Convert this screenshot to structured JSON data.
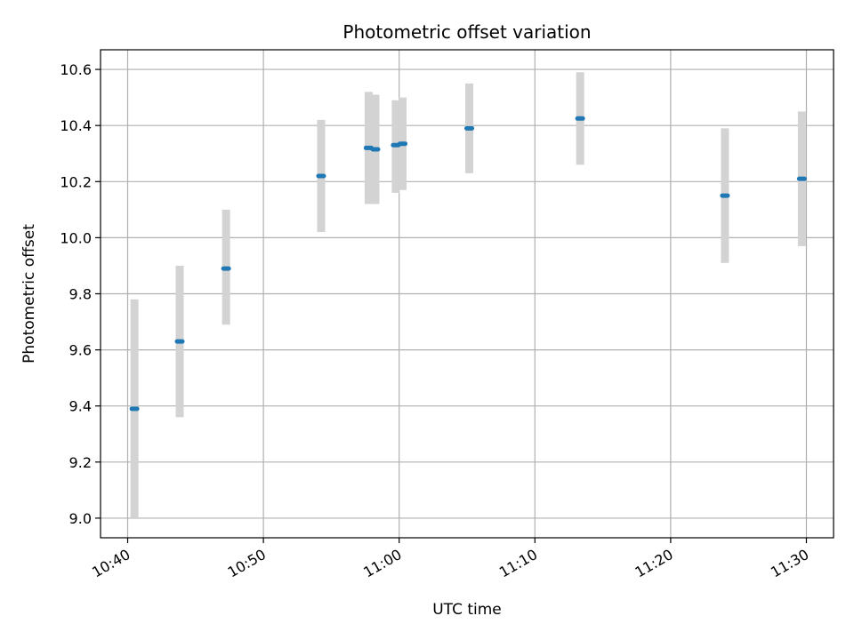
{
  "chart_data": {
    "type": "scatter",
    "title": "Photometric offset variation",
    "xlabel": "UTC time",
    "ylabel": "Photometric offset",
    "grid": true,
    "xlim": [
      "10:38",
      "11:32"
    ],
    "ylim": [
      8.93,
      10.67
    ],
    "x_ticks": [
      "10:40",
      "10:50",
      "11:00",
      "11:10",
      "11:20",
      "11:30"
    ],
    "y_ticks": [
      9.0,
      9.2,
      9.4,
      9.6,
      9.8,
      10.0,
      10.2,
      10.4,
      10.6
    ],
    "colors": {
      "point": "#1f77b4",
      "errorbar": "#d3d3d3",
      "grid": "#b0b0b0"
    },
    "points": [
      {
        "x": "10:40:30",
        "y": 9.39,
        "low": 9.0,
        "high": 9.78
      },
      {
        "x": "10:43:50",
        "y": 9.63,
        "low": 9.36,
        "high": 9.9
      },
      {
        "x": "10:47:15",
        "y": 9.89,
        "low": 9.69,
        "high": 10.1
      },
      {
        "x": "10:54:15",
        "y": 10.22,
        "low": 10.02,
        "high": 10.42
      },
      {
        "x": "10:57:45",
        "y": 10.32,
        "low": 10.12,
        "high": 10.52
      },
      {
        "x": "10:58:15",
        "y": 10.315,
        "low": 10.12,
        "high": 10.51
      },
      {
        "x": "10:59:45",
        "y": 10.33,
        "low": 10.16,
        "high": 10.49
      },
      {
        "x": "11:00:15",
        "y": 10.335,
        "low": 10.17,
        "high": 10.5
      },
      {
        "x": "11:05:10",
        "y": 10.39,
        "low": 10.23,
        "high": 10.55
      },
      {
        "x": "11:13:20",
        "y": 10.425,
        "low": 10.26,
        "high": 10.59
      },
      {
        "x": "11:24:00",
        "y": 10.15,
        "low": 9.91,
        "high": 10.39
      },
      {
        "x": "11:29:40",
        "y": 10.21,
        "low": 9.97,
        "high": 10.45
      }
    ]
  }
}
